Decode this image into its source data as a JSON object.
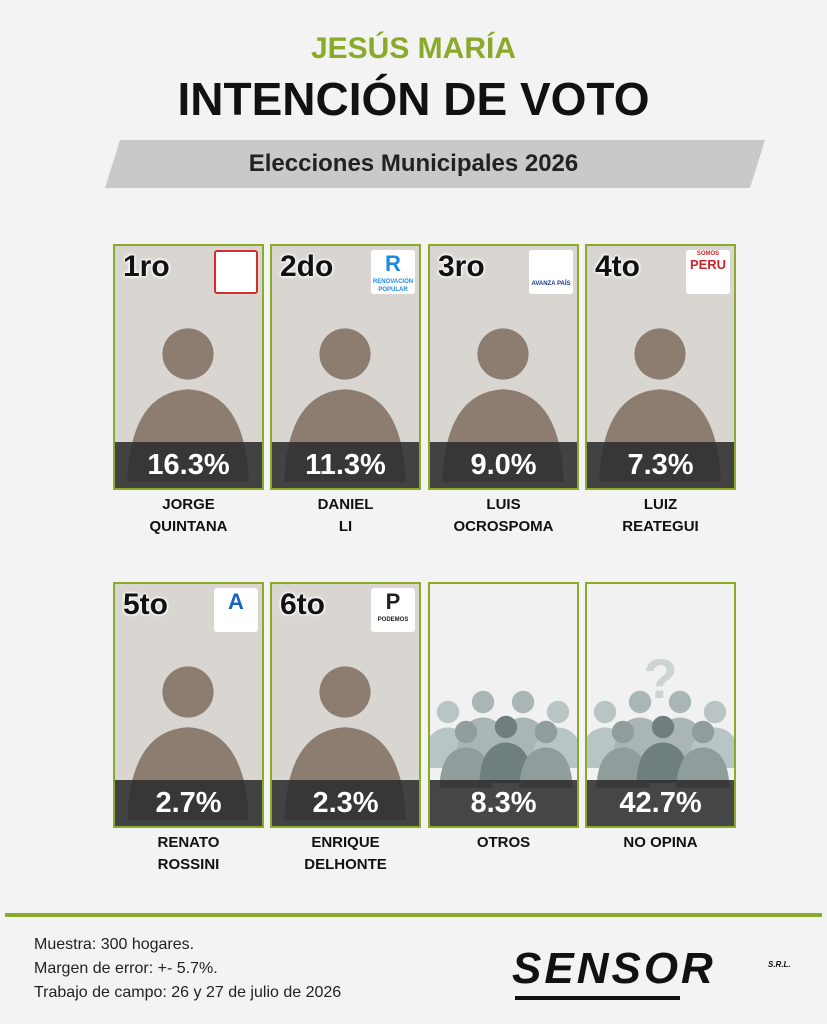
{
  "header": {
    "title": "JESÚS MARÍA",
    "subtitle": "INTENCIÓN DE VOTO",
    "banner": "Elecciones Municipales 2026"
  },
  "cards": [
    {
      "rank": "1ro",
      "percent": "16.3%",
      "name": [
        "JORGE",
        "QUINTANA"
      ]
    },
    {
      "rank": "2do",
      "percent": "11.3%",
      "name": [
        "DANIEL",
        "LI"
      ],
      "logo": [
        "R",
        "RENOVACIÓN POPULAR"
      ]
    },
    {
      "rank": "3ro",
      "percent": "9.0%",
      "name": [
        "LUIS",
        "OCROSPOMA"
      ],
      "logo": [
        "AVANZA PAÍS"
      ]
    },
    {
      "rank": "4to",
      "percent": "7.3%",
      "name": [
        "LUIZ",
        "REATEGUI"
      ],
      "logo": [
        "SOMOS",
        "PERU"
      ]
    },
    {
      "rank": "5to",
      "percent": "2.7%",
      "name": [
        "RENATO",
        "ROSSINI"
      ],
      "logo": [
        "A"
      ]
    },
    {
      "rank": "6to",
      "percent": "2.3%",
      "name": [
        "ENRIQUE",
        "DELHONTE"
      ],
      "logo": [
        "P",
        "PODEMOS"
      ]
    },
    {
      "percent": "8.3%",
      "name": [
        "OTROS"
      ]
    },
    {
      "percent": "42.7%",
      "name": [
        "NO OPINA"
      ],
      "icon": "?"
    }
  ],
  "footer": {
    "lines": [
      "Muestra: 300 hogares.",
      "Margen de error: +- 5.7%.",
      "Trabajo de campo: 26 y 27 de julio de 2026"
    ],
    "brand": "SENSOR",
    "brand_suffix": "S.R.L."
  }
}
